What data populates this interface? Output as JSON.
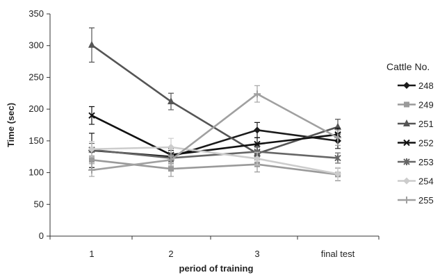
{
  "chart_data": {
    "type": "line",
    "xlabel": "period of training",
    "ylabel": "Time (sec)",
    "ylim": [
      0,
      350
    ],
    "yticks": [
      0,
      50,
      100,
      150,
      200,
      250,
      300,
      350
    ],
    "categories": [
      "1",
      "2",
      "3",
      "final test"
    ],
    "legend": {
      "title": "Cattle No.",
      "placement": "right"
    },
    "grid": false,
    "series": [
      {
        "name": "248",
        "values": [
          135,
          125,
          167,
          150
        ],
        "errors": [
          27,
          10,
          12,
          12
        ],
        "color": "#1a1a1a",
        "marker": "diamond"
      },
      {
        "name": "249",
        "values": [
          120,
          106,
          113,
          97
        ],
        "errors": [
          15,
          12,
          12,
          10
        ],
        "color": "#9a9a9a",
        "marker": "square"
      },
      {
        "name": "251",
        "values": [
          301,
          212,
          130,
          172
        ],
        "errors": [
          27,
          13,
          10,
          12
        ],
        "color": "#555555",
        "marker": "triangle"
      },
      {
        "name": "252",
        "values": [
          190,
          128,
          145,
          160
        ],
        "errors": [
          14,
          10,
          10,
          10
        ],
        "color": "#111111",
        "marker": "x"
      },
      {
        "name": "253",
        "values": [
          136,
          123,
          133,
          123
        ],
        "errors": [
          10,
          8,
          8,
          8
        ],
        "color": "#666666",
        "marker": "star"
      },
      {
        "name": "254",
        "values": [
          137,
          140,
          122,
          98
        ],
        "errors": [
          12,
          14,
          10,
          10
        ],
        "color": "#cccccc",
        "marker": "diamond"
      },
      {
        "name": "255",
        "values": [
          104,
          120,
          224,
          155
        ],
        "errors": [
          10,
          8,
          13,
          12
        ],
        "color": "#a0a0a0",
        "marker": "plus"
      }
    ]
  }
}
